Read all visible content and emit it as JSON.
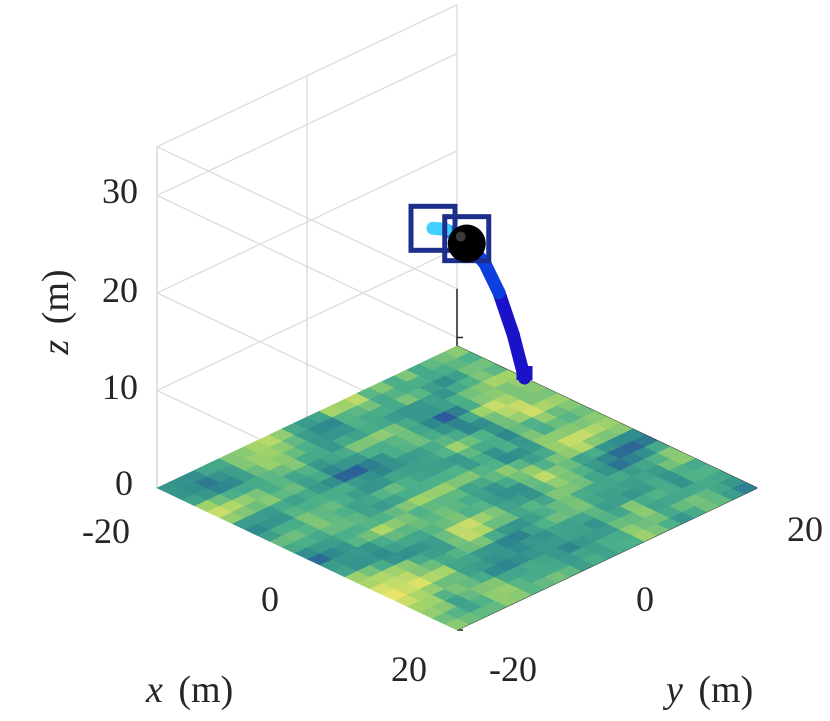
{
  "chart_data": {
    "type": "3d-trajectory-over-terrain",
    "title": "",
    "axes": {
      "x": {
        "label_var": "x",
        "label_unit": "(m)",
        "range": [
          -20,
          20
        ],
        "tick_labels": [
          "-20",
          "0",
          "20"
        ]
      },
      "y": {
        "label_var": "y",
        "label_unit": "(m)",
        "range": [
          -20,
          20
        ],
        "tick_labels": [
          "-20",
          "0",
          "20"
        ]
      },
      "z": {
        "label_var": "z",
        "label_unit": "(m)",
        "range": [
          0,
          35
        ],
        "tick_labels": [
          "0",
          "10",
          "20",
          "30"
        ]
      }
    },
    "grid": true,
    "terrain": {
      "z": 0,
      "resolution": 24,
      "colormap": "parula-like",
      "colors": [
        "#2c5a9a",
        "#2f8c8d",
        "#4bb08a",
        "#a4d46a",
        "#e9e46a"
      ]
    },
    "trajectory": {
      "points": [
        {
          "x": 0,
          "y": 9,
          "z": 8
        },
        {
          "x": 0,
          "y": 7.5,
          "z": 13
        },
        {
          "x": 0,
          "y": 5.6,
          "z": 18
        },
        {
          "x": 0,
          "y": 3.7,
          "z": 21.7
        },
        {
          "x": 0,
          "y": 1.6,
          "z": 24.3
        },
        {
          "x": 0,
          "y": 0,
          "z": 25.9
        },
        {
          "x": 0,
          "y": -1.6,
          "z": 27.1
        },
        {
          "x": 0,
          "y": -3.2,
          "z": 27.8
        }
      ],
      "colors": [
        "#1a12c8",
        "#0d3fe0",
        "#1b8cf0",
        "#3fd0ff"
      ],
      "current_position": {
        "x": 0,
        "y": 1.3,
        "z": 24.6
      },
      "target_boxes": [
        {
          "x": 0,
          "y": 1.3,
          "z": 25.1
        },
        {
          "x": 0,
          "y": -3.2,
          "z": 27.8
        }
      ]
    }
  }
}
